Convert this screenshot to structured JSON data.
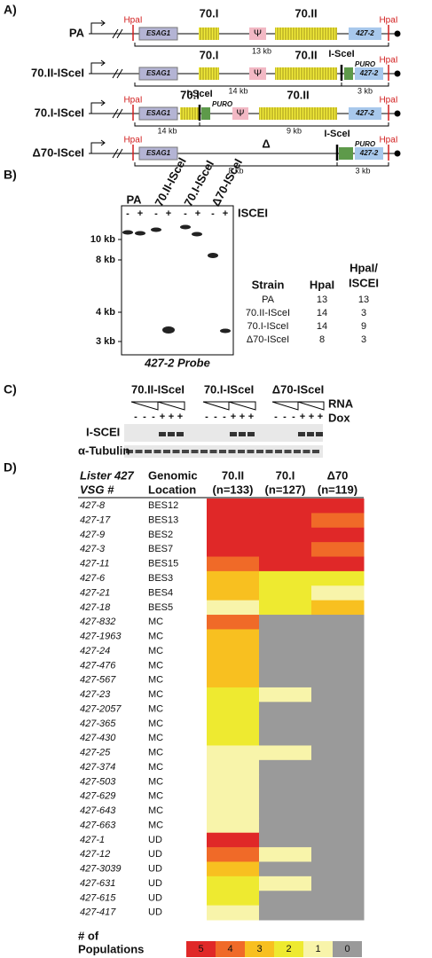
{
  "panel_a": {
    "label": "A)",
    "constructs": [
      {
        "name": "PA",
        "hpai_left": "HpaI",
        "esag": "ESAG1",
        "g70i": "70.I",
        "psi": "Ψ",
        "g70ii": "70.II",
        "vsg": "427-2",
        "hpai_right": "HpaI",
        "sizes": [
          "13 kb"
        ]
      },
      {
        "name": "70.II-ISceI",
        "esag": "ESAG1",
        "g70i": "70.I",
        "psi": "Ψ",
        "g70ii": "70.II",
        "isce": "I-SceI",
        "puro": "PURO",
        "vsg": "427-2",
        "hpai_right": "HpaI",
        "sizes": [
          "14 kb",
          "3 kb"
        ]
      },
      {
        "name": "70.I-ISceI",
        "hpai_left": "HpaI",
        "esag": "ESAG1",
        "isce": "I-SceI",
        "g70i": "70.I",
        "puro": "PURO",
        "psi": "Ψ",
        "g70ii": "70.II",
        "vsg": "427-2",
        "hpai_right": "HpaI",
        "sizes": [
          "14 kb",
          "9 kb"
        ]
      },
      {
        "name": "Δ70-ISceI",
        "hpai_left": "HpaI",
        "esag": "ESAG1",
        "delta": "Δ",
        "isce": "I-SceI",
        "puro": "PURO",
        "vsg": "427-2",
        "hpai_right": "HpaI",
        "sizes": [
          "8 kb",
          "3 kb"
        ]
      }
    ]
  },
  "panel_b": {
    "label": "B)",
    "lanes": [
      "PA",
      "70.II-ISceI",
      "70.I-ISceI",
      "Δ70-ISceI"
    ],
    "treatment": [
      "-",
      "+"
    ],
    "treatment_label": "ISCEI",
    "markers": [
      "10 kb",
      "8 kb",
      "4 kb",
      "3 kb"
    ],
    "probe": "427-2 Probe",
    "table": {
      "header": [
        "Strain",
        "HpaI",
        "HpaI/",
        "ISCEI"
      ],
      "rows": [
        [
          "PA",
          "13",
          "13"
        ],
        [
          "70.II-ISceI",
          "14",
          "3"
        ],
        [
          "70.I-ISceI",
          "14",
          "9"
        ],
        [
          "Δ70-ISceI",
          "8",
          "3"
        ]
      ]
    }
  },
  "panel_c": {
    "label": "C)",
    "groups": [
      "70.II-ISceI",
      "70.I-ISceI",
      "Δ70-ISceI"
    ],
    "rna": "RNA",
    "dox": "Dox",
    "dox_signs": [
      "-",
      "-",
      "-",
      "+",
      "+",
      "+"
    ],
    "rows": [
      "I-SCEI",
      "α-Tubulin"
    ]
  },
  "panel_d": {
    "label": "D)",
    "header": {
      "vsg": [
        "Lister 427",
        "VSG #"
      ],
      "location": [
        "Genomic",
        "Location"
      ],
      "columns": [
        [
          "70.II",
          "(n=133)"
        ],
        [
          "70.I",
          "(n=127)"
        ],
        [
          "Δ70",
          "(n=119)"
        ]
      ]
    },
    "rows": [
      {
        "vsg": "427-8",
        "location": "BES12",
        "values": [
          5,
          5,
          5
        ]
      },
      {
        "vsg": "427-17",
        "location": "BES13",
        "values": [
          5,
          5,
          4
        ]
      },
      {
        "vsg": "427-9",
        "location": "BES2",
        "values": [
          5,
          5,
          5
        ]
      },
      {
        "vsg": "427-3",
        "location": "BES7",
        "values": [
          5,
          5,
          4
        ]
      },
      {
        "vsg": "427-11",
        "location": "BES15",
        "values": [
          4,
          5,
          5
        ]
      },
      {
        "vsg": "427-6",
        "location": "BES3",
        "values": [
          3,
          2,
          2
        ]
      },
      {
        "vsg": "427-21",
        "location": "BES4",
        "values": [
          3,
          2,
          1
        ]
      },
      {
        "vsg": "427-18",
        "location": "BES5",
        "values": [
          1,
          2,
          3
        ]
      },
      {
        "vsg": "427-832",
        "location": "MC",
        "values": [
          4,
          0,
          0
        ]
      },
      {
        "vsg": "427-1963",
        "location": "MC",
        "values": [
          3,
          0,
          0
        ]
      },
      {
        "vsg": "427-24",
        "location": "MC",
        "values": [
          3,
          0,
          0
        ]
      },
      {
        "vsg": "427-476",
        "location": "MC",
        "values": [
          3,
          0,
          0
        ]
      },
      {
        "vsg": "427-567",
        "location": "MC",
        "values": [
          3,
          0,
          0
        ]
      },
      {
        "vsg": "427-23",
        "location": "MC",
        "values": [
          2,
          1,
          0
        ]
      },
      {
        "vsg": "427-2057",
        "location": "MC",
        "values": [
          2,
          0,
          0
        ]
      },
      {
        "vsg": "427-365",
        "location": "MC",
        "values": [
          2,
          0,
          0
        ]
      },
      {
        "vsg": "427-430",
        "location": "MC",
        "values": [
          2,
          0,
          0
        ]
      },
      {
        "vsg": "427-25",
        "location": "MC",
        "values": [
          1,
          1,
          0
        ]
      },
      {
        "vsg": "427-374",
        "location": "MC",
        "values": [
          1,
          0,
          0
        ]
      },
      {
        "vsg": "427-503",
        "location": "MC",
        "values": [
          1,
          0,
          0
        ]
      },
      {
        "vsg": "427-629",
        "location": "MC",
        "values": [
          1,
          0,
          0
        ]
      },
      {
        "vsg": "427-643",
        "location": "MC",
        "values": [
          1,
          0,
          0
        ]
      },
      {
        "vsg": "427-663",
        "location": "MC",
        "values": [
          1,
          0,
          0
        ]
      },
      {
        "vsg": "427-1",
        "location": "UD",
        "values": [
          5,
          0,
          0
        ]
      },
      {
        "vsg": "427-12",
        "location": "UD",
        "values": [
          4,
          1,
          0
        ]
      },
      {
        "vsg": "427-3039",
        "location": "UD",
        "values": [
          3,
          0,
          0
        ]
      },
      {
        "vsg": "427-631",
        "location": "UD",
        "values": [
          2,
          1,
          0
        ]
      },
      {
        "vsg": "427-615",
        "location": "UD",
        "values": [
          2,
          0,
          0
        ]
      },
      {
        "vsg": "427-417",
        "location": "UD",
        "values": [
          1,
          0,
          0
        ]
      }
    ],
    "legend": {
      "title": [
        "# of",
        "Populations"
      ],
      "levels": [
        5,
        4,
        3,
        2,
        1,
        0
      ],
      "colors": [
        "#e02828",
        "#f06a28",
        "#f8c020",
        "#eeea30",
        "#f8f4aa",
        "#9a9a9a"
      ]
    }
  }
}
